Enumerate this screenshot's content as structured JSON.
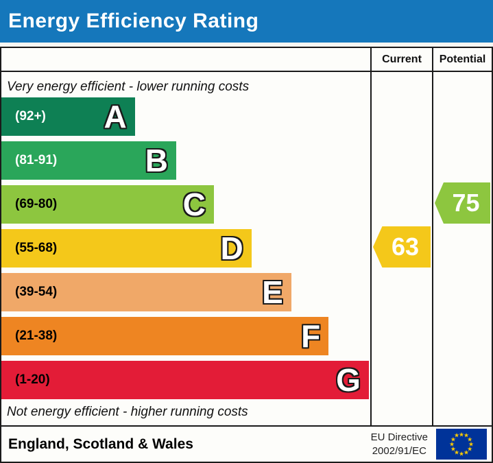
{
  "title": "Energy Efficiency Rating",
  "columns": {
    "current": "Current",
    "potential": "Potential"
  },
  "captions": {
    "top": "Very energy efficient - lower running costs",
    "bottom": "Not energy efficient - higher running costs"
  },
  "bands": [
    {
      "letter": "A",
      "range": "(92+)",
      "color": "#0e8054",
      "text_color": "#ffffff",
      "width_pct": 36.2
    },
    {
      "letter": "B",
      "range": "(81-91)",
      "color": "#2aa65a",
      "text_color": "#ffffff",
      "width_pct": 47.4
    },
    {
      "letter": "C",
      "range": "(69-80)",
      "color": "#8dc63f",
      "text_color": "#000000",
      "width_pct": 57.6
    },
    {
      "letter": "D",
      "range": "(55-68)",
      "color": "#f4c81a",
      "text_color": "#000000",
      "width_pct": 67.8
    },
    {
      "letter": "E",
      "range": "(39-54)",
      "color": "#f0a868",
      "text_color": "#000000",
      "width_pct": 78.6
    },
    {
      "letter": "F",
      "range": "(21-38)",
      "color": "#ee8522",
      "text_color": "#000000",
      "width_pct": 88.7
    },
    {
      "letter": "G",
      "range": "(1-20)",
      "color": "#e31c37",
      "text_color": "#000000",
      "width_pct": 99.6
    }
  ],
  "ratings": {
    "current": {
      "value": "63",
      "band": "D",
      "color": "#f4c81a",
      "row": 3
    },
    "potential": {
      "value": "75",
      "band": "C",
      "color": "#8dc63f",
      "row": 2
    }
  },
  "footer": {
    "region": "England, Scotland & Wales",
    "directive_line1": "EU Directive",
    "directive_line2": "2002/91/EC",
    "eu_flag": {
      "bg": "#003399",
      "star_color": "#ffcc00",
      "star_glyph": "★"
    }
  },
  "chart_data": {
    "type": "bar",
    "title": "Energy Efficiency Rating",
    "categories": [
      "A",
      "B",
      "C",
      "D",
      "E",
      "F",
      "G"
    ],
    "tick_labels": [
      "(92+)",
      "(81-91)",
      "(69-80)",
      "(55-68)",
      "(39-54)",
      "(21-38)",
      "(1-20)"
    ],
    "band_score_ranges": [
      [
        92,
        100
      ],
      [
        81,
        91
      ],
      [
        69,
        80
      ],
      [
        55,
        68
      ],
      [
        39,
        54
      ],
      [
        21,
        38
      ],
      [
        1,
        20
      ]
    ],
    "series": [
      {
        "name": "Current",
        "value": 63,
        "band": "D"
      },
      {
        "name": "Potential",
        "value": 75,
        "band": "C"
      }
    ],
    "xlabel": "",
    "ylabel": "",
    "legend": [
      "Current",
      "Potential"
    ],
    "top_caption": "Very energy efficient - lower running costs",
    "bottom_caption": "Not energy efficient - higher running costs",
    "footer_region": "England, Scotland & Wales",
    "footer_directive": "EU Directive 2002/91/EC"
  }
}
